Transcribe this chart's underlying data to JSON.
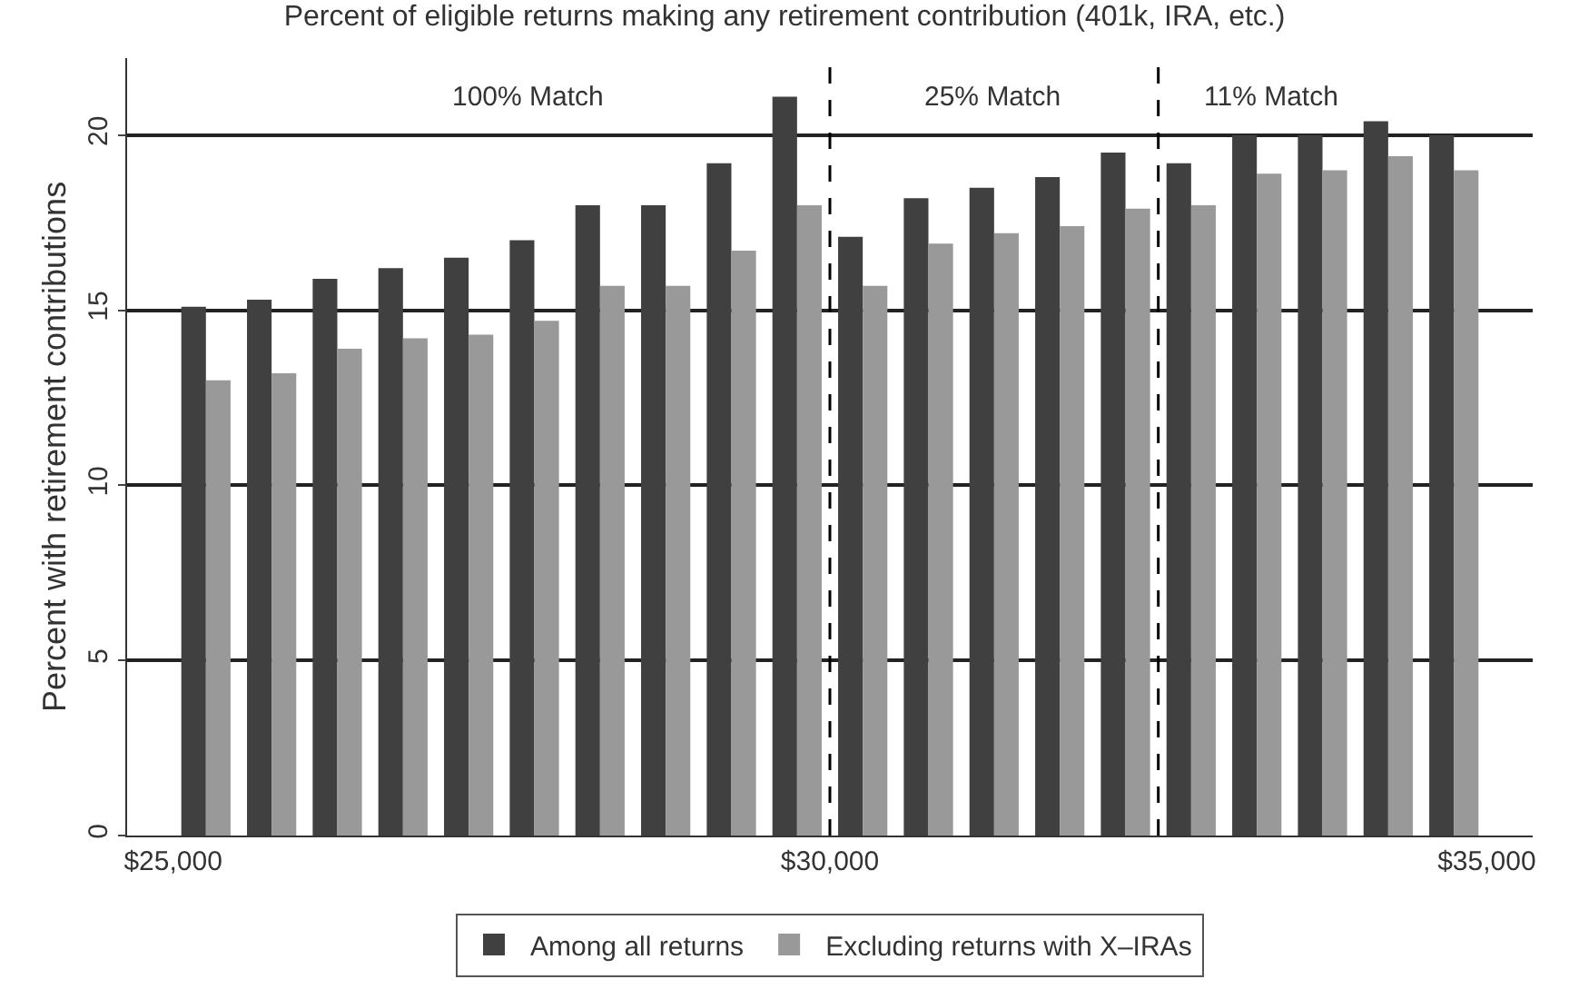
{
  "chart_data": {
    "type": "bar",
    "title": "Percent of eligible returns making any retirement contribution (401k, IRA, etc.)",
    "ylabel": "Percent with retirement contributions",
    "x": [
      25250,
      25750,
      26250,
      26750,
      27250,
      27750,
      28250,
      28750,
      29250,
      29750,
      30250,
      30750,
      31250,
      31750,
      32250,
      32750,
      33250,
      33750,
      34250,
      34750
    ],
    "series": [
      {
        "name": "Among all returns",
        "color": "#404040",
        "values": [
          15.1,
          15.3,
          15.9,
          16.2,
          16.5,
          17.0,
          18.0,
          18.0,
          19.2,
          21.1,
          17.1,
          18.2,
          18.5,
          18.8,
          19.5,
          19.2,
          20.0,
          20.0,
          20.4,
          20.0
        ]
      },
      {
        "name": "Excluding returns with X–IRAs",
        "color": "#999999",
        "values": [
          13.0,
          13.2,
          13.9,
          14.2,
          14.3,
          14.7,
          15.7,
          15.7,
          16.7,
          18.0,
          15.7,
          16.9,
          17.2,
          17.4,
          17.9,
          18.0,
          18.9,
          19.0,
          19.4,
          19.0
        ]
      }
    ],
    "xlim": [
      24650,
      35350
    ],
    "xticks": [
      {
        "value": 25000,
        "label": "$25,000"
      },
      {
        "value": 30000,
        "label": "$30,000"
      },
      {
        "value": 35000,
        "label": "$35,000"
      }
    ],
    "ylim": [
      0,
      22.2
    ],
    "yticks": [
      0,
      5,
      10,
      15,
      20
    ],
    "grid": "y",
    "legend": "bottom",
    "ref_lines": [
      {
        "axis": "x",
        "value": 30000,
        "line_style": "dashed",
        "color": "#000000"
      },
      {
        "axis": "x",
        "value": 32500,
        "line_style": "dashed",
        "color": "#000000"
      }
    ],
    "annotations": [
      "100% Match",
      "25% Match",
      "11% Match"
    ]
  }
}
